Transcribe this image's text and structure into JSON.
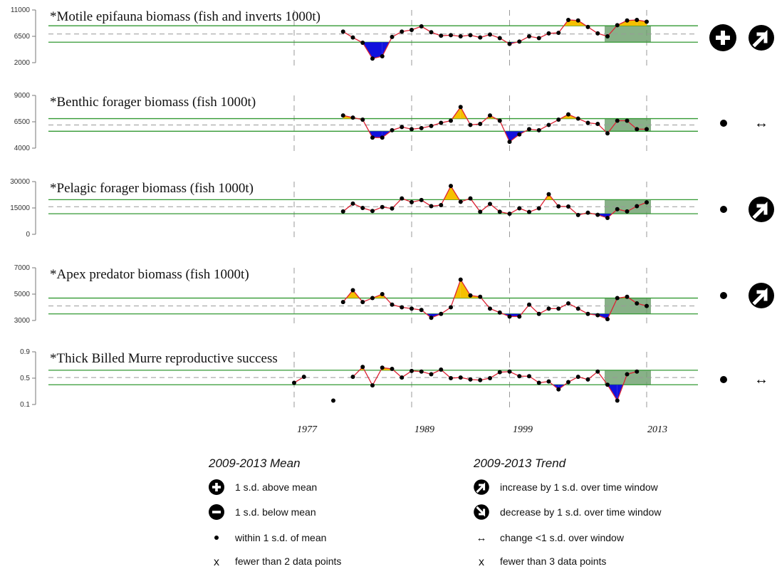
{
  "years": [
    1977,
    1978,
    1979,
    1980,
    1981,
    1982,
    1983,
    1984,
    1985,
    1986,
    1987,
    1988,
    1989,
    1990,
    1991,
    1992,
    1993,
    1994,
    1995,
    1996,
    1997,
    1998,
    1999,
    2000,
    2001,
    2002,
    2003,
    2004,
    2005,
    2006,
    2007,
    2008,
    2009,
    2010,
    2011,
    2012,
    2013,
    2014
  ],
  "year_labels": [
    "1977",
    "1989",
    "1999",
    "2013"
  ],
  "colors": {
    "line": "#dd2233",
    "point": "#000000",
    "above": "#f5c000",
    "below": "#1111dd",
    "band_line": "#339933",
    "window": "#6a9e6a"
  },
  "chart_data": [
    {
      "type": "line",
      "title": "*Motile epifauna biomass (fish and inverts 1000t)",
      "yticks": [
        "2000",
        "6500",
        "11000"
      ],
      "ylim": [
        2000,
        11000
      ],
      "mean": 6900,
      "sd_upper": 8300,
      "sd_lower": 5500,
      "mean_status": "plus",
      "trend": "increase",
      "values": [
        null,
        null,
        null,
        null,
        null,
        7300,
        6300,
        5400,
        2700,
        3100,
        6400,
        7300,
        7600,
        8200,
        7200,
        6600,
        6700,
        6500,
        6700,
        6300,
        6800,
        6200,
        5200,
        5600,
        6500,
        6200,
        7000,
        7100,
        9300,
        9200,
        8100,
        7000,
        6500,
        8400,
        9200,
        9300,
        9000,
        null
      ]
    },
    {
      "type": "line",
      "title": "*Benthic forager biomass (fish 1000t)",
      "yticks": [
        "4000",
        "6500",
        "9000"
      ],
      "ylim": [
        4000,
        9000
      ],
      "mean": 6200,
      "sd_upper": 6800,
      "sd_lower": 5600,
      "mean_status": "within",
      "trend": "no-change",
      "values": [
        null,
        null,
        null,
        null,
        null,
        7100,
        6900,
        6700,
        5000,
        5000,
        5700,
        6000,
        5800,
        5900,
        6100,
        6400,
        6600,
        7900,
        6200,
        6300,
        7100,
        6600,
        4600,
        5300,
        5800,
        5700,
        6200,
        6700,
        7200,
        6800,
        6400,
        6300,
        5400,
        6600,
        6600,
        5800,
        5800,
        null
      ]
    },
    {
      "type": "line",
      "title": "*Pelagic forager biomass (fish 1000t)",
      "yticks": [
        "0",
        "15000",
        "30000"
      ],
      "ylim": [
        0,
        30000
      ],
      "mean": 15700,
      "sd_upper": 19700,
      "sd_lower": 11700,
      "mean_status": "within",
      "trend": "increase",
      "values": [
        null,
        null,
        null,
        null,
        null,
        13000,
        17500,
        15000,
        13300,
        15500,
        14700,
        20400,
        18300,
        19500,
        16000,
        16600,
        27500,
        18500,
        20400,
        12800,
        17300,
        12800,
        11700,
        14800,
        12700,
        14800,
        22800,
        15900,
        15800,
        11000,
        12300,
        11100,
        9300,
        14300,
        13000,
        16000,
        18200,
        null
      ]
    },
    {
      "type": "line",
      "title": "*Apex predator biomass (fish 1000t)",
      "yticks": [
        "3000",
        "5000",
        "7000"
      ],
      "ylim": [
        3000,
        7000
      ],
      "mean": 4100,
      "sd_upper": 4700,
      "sd_lower": 3500,
      "mean_status": "within",
      "trend": "increase",
      "values": [
        null,
        null,
        null,
        null,
        null,
        4400,
        5300,
        4400,
        4700,
        5000,
        4200,
        4000,
        3900,
        3800,
        3200,
        3500,
        4000,
        6100,
        4900,
        4800,
        3900,
        3600,
        3300,
        3300,
        4200,
        3500,
        3900,
        3900,
        4300,
        3900,
        3500,
        3400,
        3100,
        4700,
        4800,
        4300,
        4100,
        null
      ]
    },
    {
      "type": "line",
      "title": "*Thick Billed Murre reproductive success",
      "yticks": [
        "0.1",
        "0.5",
        "0.9"
      ],
      "ylim": [
        0.1,
        0.9
      ],
      "mean": 0.51,
      "sd_upper": 0.62,
      "sd_lower": 0.4,
      "mean_status": "within",
      "trend": "no-change",
      "values": [
        0.43,
        0.52,
        null,
        null,
        0.16,
        null,
        0.52,
        0.67,
        0.39,
        0.66,
        0.64,
        0.51,
        0.61,
        0.6,
        0.56,
        0.63,
        0.5,
        0.51,
        0.48,
        0.47,
        0.5,
        0.59,
        0.6,
        0.53,
        0.53,
        0.43,
        0.45,
        0.33,
        0.44,
        0.52,
        0.48,
        0.6,
        0.4,
        0.16,
        0.56,
        0.6,
        null,
        null
      ]
    }
  ],
  "legend": {
    "mean_heading": "2009-2013 Mean",
    "trend_heading": "2009-2013 Trend",
    "mean_items": [
      "1 s.d. above mean",
      "1 s.d. below mean",
      "within 1 s.d. of mean",
      "fewer than 2 data points"
    ],
    "trend_items": [
      "increase by 1 s.d. over time window",
      "decrease by 1 s.d. over time window",
      "change <1 s.d. over window",
      "fewer than 3 data points"
    ],
    "x_symbol": "x",
    "arrow_symbol": "↔"
  }
}
